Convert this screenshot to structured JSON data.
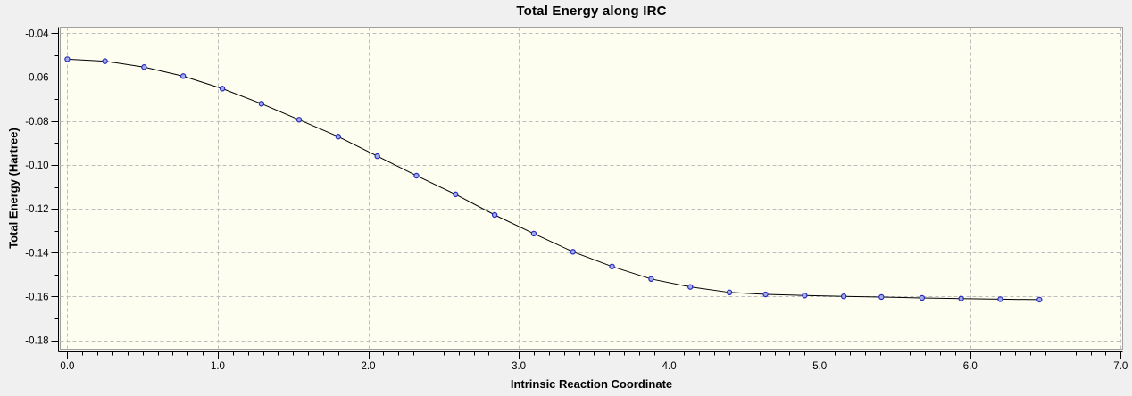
{
  "chart_data": {
    "type": "line",
    "title": "Total Energy along IRC",
    "xlabel": "Intrinsic Reaction Coordinate",
    "ylabel": "Total Energy (Hartree)",
    "xlim": [
      -0.047,
      7.013
    ],
    "ylim": [
      -0.184,
      -0.0372
    ],
    "x_major_ticks": [
      0.0,
      1.0,
      2.0,
      3.0,
      4.0,
      5.0,
      6.0,
      7.0
    ],
    "x_tick_labels": [
      "0.0",
      "1.0",
      "2.0",
      "3.0",
      "4.0",
      "5.0",
      "6.0",
      "7.0"
    ],
    "x_minor_step": 0.1,
    "y_major_ticks": [
      -0.04,
      -0.06,
      -0.08,
      -0.1,
      -0.12,
      -0.14,
      -0.16,
      -0.18
    ],
    "y_tick_labels": [
      "-0.04",
      "-0.06",
      "-0.08",
      "-0.10",
      "-0.12",
      "-0.14",
      "-0.16",
      "-0.18"
    ],
    "y_minor_step": 0.01,
    "grid": "dashed-major",
    "legend": "none",
    "series": [
      {
        "name": "Total Energy",
        "marker": "circle",
        "x": [
          0.0,
          0.25,
          0.51,
          0.77,
          1.03,
          1.29,
          1.54,
          1.8,
          2.06,
          2.32,
          2.58,
          2.84,
          3.1,
          3.36,
          3.62,
          3.88,
          4.14,
          4.4,
          4.64,
          4.9,
          5.16,
          5.41,
          5.68,
          5.94,
          6.2,
          6.46
        ],
        "y": [
          -0.0518,
          -0.0527,
          -0.0554,
          -0.0595,
          -0.0652,
          -0.0721,
          -0.0794,
          -0.0871,
          -0.096,
          -0.1049,
          -0.1134,
          -0.1228,
          -0.1313,
          -0.1396,
          -0.1463,
          -0.152,
          -0.1556,
          -0.1581,
          -0.159,
          -0.1595,
          -0.1599,
          -0.1602,
          -0.1606,
          -0.1609,
          -0.1612,
          -0.1614
        ]
      }
    ]
  },
  "colors": {
    "outer_background": "#f0f0f0",
    "plot_background": "#fdfdf0",
    "plot_border": "#a0a0a0",
    "grid": "#bdbdbd",
    "axis": "#000000",
    "line": "#000000",
    "text": "#000000",
    "marker_fill": "#a0aeec",
    "marker_edge": "#2929b8"
  }
}
